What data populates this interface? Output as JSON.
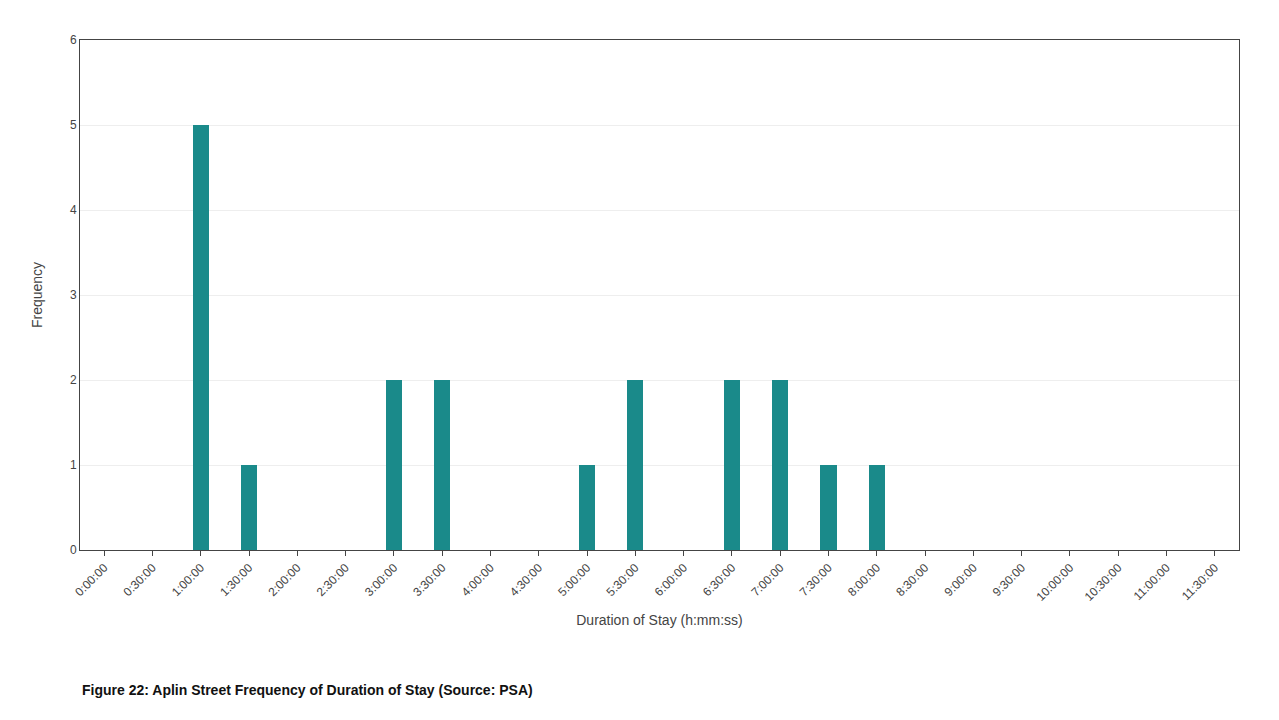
{
  "chart_data": {
    "type": "bar",
    "caption": "Figure 22: Aplin Street Frequency of Duration of Stay (Source: PSA)",
    "xlabel": "Duration of Stay (h:mm:ss)",
    "ylabel": "Frequency",
    "x": [
      60,
      90,
      180,
      210,
      300,
      330,
      390,
      420,
      450,
      480
    ],
    "values": [
      5,
      1,
      2,
      2,
      1,
      2,
      2,
      2,
      1,
      1
    ],
    "color": "#1a8a8a",
    "xlim": [
      -15,
      705
    ],
    "xticks": [
      {
        "value": 0,
        "label": "0:00:00"
      },
      {
        "value": 30,
        "label": "0:30:00"
      },
      {
        "value": 60,
        "label": "1:00:00"
      },
      {
        "value": 90,
        "label": "1:30:00"
      },
      {
        "value": 120,
        "label": "2:00:00"
      },
      {
        "value": 150,
        "label": "2:30:00"
      },
      {
        "value": 180,
        "label": "3:00:00"
      },
      {
        "value": 210,
        "label": "3:30:00"
      },
      {
        "value": 240,
        "label": "4:00:00"
      },
      {
        "value": 270,
        "label": "4:30:00"
      },
      {
        "value": 300,
        "label": "5:00:00"
      },
      {
        "value": 330,
        "label": "5:30:00"
      },
      {
        "value": 360,
        "label": "6:00:00"
      },
      {
        "value": 390,
        "label": "6:30:00"
      },
      {
        "value": 420,
        "label": "7:00:00"
      },
      {
        "value": 450,
        "label": "7:30:00"
      },
      {
        "value": 480,
        "label": "8:00:00"
      },
      {
        "value": 510,
        "label": "8:30:00"
      },
      {
        "value": 540,
        "label": "9:00:00"
      },
      {
        "value": 570,
        "label": "9:30:00"
      },
      {
        "value": 600,
        "label": "10:00:00"
      },
      {
        "value": 630,
        "label": "10:30:00"
      },
      {
        "value": 660,
        "label": "11:00:00"
      },
      {
        "value": 690,
        "label": "11:30:00"
      }
    ],
    "ylim": [
      0,
      6
    ],
    "yticks": [
      0,
      1,
      2,
      3,
      4,
      5,
      6
    ],
    "grid": true
  }
}
